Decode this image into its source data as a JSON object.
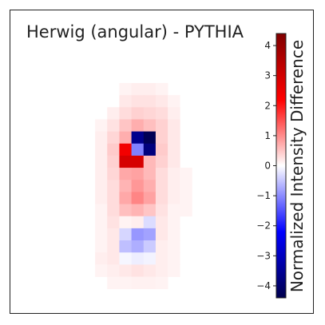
{
  "chart_data": {
    "type": "heatmap",
    "title": "Herwig (angular) - PYTHIA",
    "colorbar": {
      "label": "Normalized Intensity Difference",
      "min": -4.4,
      "max": 4.4,
      "ticks": [
        4,
        3,
        2,
        1,
        0,
        -1,
        -2,
        -3,
        -4
      ],
      "tick_labels": [
        "4",
        "3",
        "2",
        "1",
        "0",
        "−1",
        "−2",
        "−3",
        "−4"
      ],
      "colormap": "seismic"
    },
    "grid": {
      "rows": 25,
      "cols": 25,
      "row_start": 0,
      "col_start": 0
    },
    "cells": [
      [
        6,
        9,
        0.1
      ],
      [
        6,
        10,
        0.15
      ],
      [
        6,
        11,
        0.15
      ],
      [
        6,
        12,
        0.1
      ],
      [
        7,
        9,
        0.2
      ],
      [
        7,
        10,
        0.25
      ],
      [
        7,
        11,
        0.25
      ],
      [
        7,
        12,
        0.2
      ],
      [
        7,
        13,
        0.1
      ],
      [
        8,
        8,
        0.15
      ],
      [
        8,
        9,
        0.3
      ],
      [
        8,
        10,
        0.4
      ],
      [
        8,
        11,
        0.35
      ],
      [
        8,
        12,
        0.3
      ],
      [
        8,
        13,
        0.15
      ],
      [
        9,
        7,
        0.1
      ],
      [
        9,
        8,
        0.25
      ],
      [
        9,
        9,
        0.5
      ],
      [
        9,
        10,
        0.7
      ],
      [
        9,
        11,
        0.55
      ],
      [
        9,
        12,
        0.4
      ],
      [
        9,
        13,
        0.2
      ],
      [
        10,
        7,
        0.15
      ],
      [
        10,
        8,
        0.35
      ],
      [
        10,
        9,
        0.7
      ],
      [
        10,
        10,
        -3.6
      ],
      [
        10,
        11,
        -4.3
      ],
      [
        10,
        12,
        0.4
      ],
      [
        10,
        13,
        0.2
      ],
      [
        11,
        7,
        0.15
      ],
      [
        11,
        8,
        0.45
      ],
      [
        11,
        9,
        2.4
      ],
      [
        11,
        10,
        -1.1
      ],
      [
        11,
        11,
        -3.8
      ],
      [
        11,
        12,
        0.45
      ],
      [
        11,
        13,
        0.2
      ],
      [
        12,
        7,
        0.15
      ],
      [
        12,
        8,
        0.4
      ],
      [
        12,
        9,
        2.9
      ],
      [
        12,
        10,
        2.9
      ],
      [
        12,
        11,
        0.6
      ],
      [
        12,
        12,
        0.4
      ],
      [
        12,
        13,
        0.2
      ],
      [
        13,
        7,
        0.15
      ],
      [
        13,
        8,
        0.35
      ],
      [
        13,
        9,
        0.75
      ],
      [
        13,
        10,
        0.8
      ],
      [
        13,
        11,
        0.6
      ],
      [
        13,
        12,
        0.3
      ],
      [
        13,
        13,
        0.15
      ],
      [
        13,
        14,
        0.1
      ],
      [
        14,
        7,
        0.15
      ],
      [
        14,
        8,
        0.3
      ],
      [
        14,
        9,
        0.65
      ],
      [
        14,
        10,
        0.9
      ],
      [
        14,
        11,
        0.7
      ],
      [
        14,
        12,
        0.3
      ],
      [
        14,
        13,
        0.15
      ],
      [
        14,
        14,
        0.1
      ],
      [
        15,
        7,
        0.15
      ],
      [
        15,
        8,
        0.3
      ],
      [
        15,
        9,
        0.75
      ],
      [
        15,
        10,
        1.05
      ],
      [
        15,
        11,
        0.8
      ],
      [
        15,
        12,
        0.3
      ],
      [
        15,
        13,
        0.15
      ],
      [
        15,
        14,
        0.1
      ],
      [
        16,
        7,
        0.1
      ],
      [
        16,
        8,
        0.3
      ],
      [
        16,
        9,
        0.55
      ],
      [
        16,
        10,
        0.65
      ],
      [
        16,
        11,
        0.5
      ],
      [
        16,
        12,
        0.25
      ],
      [
        16,
        13,
        0.1
      ],
      [
        16,
        14,
        0.1
      ],
      [
        17,
        7,
        0.1
      ],
      [
        17,
        8,
        0.25
      ],
      [
        17,
        9,
        0.1
      ],
      [
        17,
        10,
        0.15
      ],
      [
        17,
        11,
        -0.3
      ],
      [
        17,
        12,
        0.2
      ],
      [
        17,
        13,
        0.1
      ],
      [
        18,
        7,
        0.1
      ],
      [
        18,
        8,
        0.2
      ],
      [
        18,
        9,
        -0.35
      ],
      [
        18,
        10,
        -0.9
      ],
      [
        18,
        11,
        -0.8
      ],
      [
        18,
        12,
        0.2
      ],
      [
        18,
        13,
        0.1
      ],
      [
        19,
        7,
        0.1
      ],
      [
        19,
        8,
        0.2
      ],
      [
        19,
        9,
        -0.55
      ],
      [
        19,
        10,
        -0.7
      ],
      [
        19,
        11,
        -0.45
      ],
      [
        19,
        12,
        0.15
      ],
      [
        19,
        13,
        0.1
      ],
      [
        20,
        7,
        0.15
      ],
      [
        20,
        8,
        0.2
      ],
      [
        20,
        9,
        -0.08
      ],
      [
        20,
        10,
        -0.15
      ],
      [
        20,
        11,
        -0.1
      ],
      [
        20,
        12,
        0.15
      ],
      [
        20,
        13,
        0.1
      ],
      [
        21,
        7,
        0.1
      ],
      [
        21,
        8,
        0.15
      ],
      [
        21,
        9,
        0.2
      ],
      [
        21,
        10,
        0.25
      ],
      [
        21,
        11,
        0.2
      ],
      [
        21,
        12,
        0.15
      ],
      [
        21,
        13,
        0.1
      ],
      [
        22,
        8,
        0.1
      ],
      [
        22,
        9,
        0.1
      ],
      [
        22,
        10,
        0.12
      ],
      [
        22,
        11,
        0.12
      ],
      [
        22,
        12,
        0.1
      ]
    ]
  }
}
